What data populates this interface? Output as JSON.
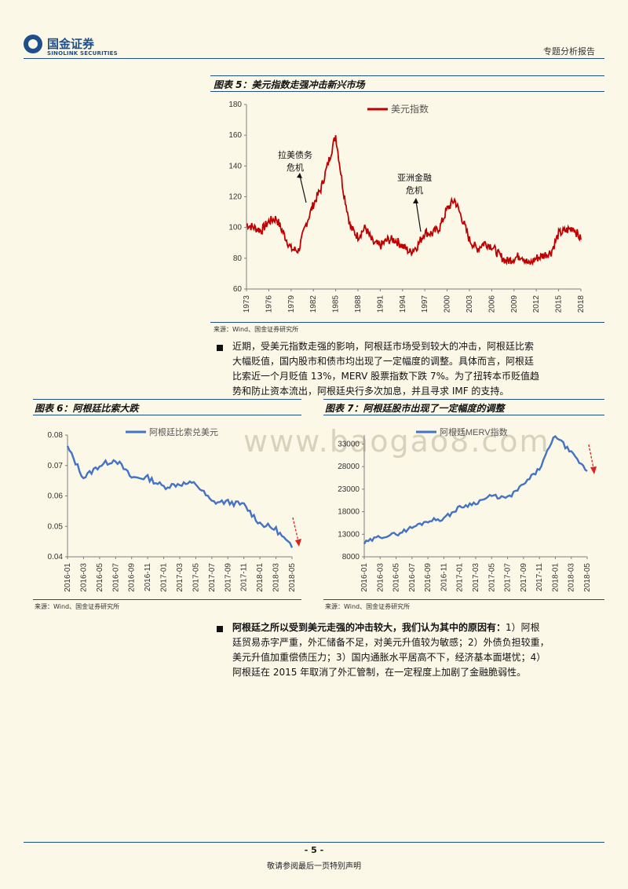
{
  "header": {
    "logo_cn": "国金证券",
    "logo_en": "SINOLINK SECURITIES",
    "right_label": "专题分析报告"
  },
  "figure5": {
    "title": "图表 5：美元指数走强冲击新兴市场",
    "source": "来源：Wind、国金证券研究所",
    "annotations": [
      "拉美债务",
      "危机",
      "亚洲金融",
      "危机"
    ]
  },
  "para1": {
    "lines": [
      "近期，受美元指数走强的影响，阿根廷市场受到较大的冲击，阿根廷比索",
      "大幅贬值，国内股市和债市均出现了一定幅度的调整。具体而言，阿根廷",
      "比索近一个月贬值 13%，MERV 股票指数下跌 7%。为了扭转本币贬值趋",
      "势和防止资本流出，阿根廷央行多次加息，并且寻求 IMF 的支持。"
    ]
  },
  "figure6": {
    "title": "图表 6：阿根廷比索大跌",
    "source": "来源：Wind、国金证券研究所"
  },
  "figure7": {
    "title": "图表 7：阿根廷股市出现了一定幅度的调整",
    "source": "来源：Wind、国金证券研究所"
  },
  "para2": {
    "lead": "阿根廷之所以受到美元走强的冲击较大，我们认为其中的原因有：",
    "lines": [
      "1）阿根",
      "廷贸易赤字严重，外汇储备不足，对美元升值较为敏感；2）外债负担较重，",
      "美元升值加重偿债压力；3）国内通胀水平居高不下，经济基本面堪忧；4）",
      "阿根廷在 2015 年取消了外汇管制，在一定程度上加剧了金融脆弱性。"
    ]
  },
  "watermark": "www.baogao8.com",
  "footer": {
    "page": "- 5 -",
    "note": "敬请参阅最后一页特别声明"
  },
  "chart_data": [
    {
      "type": "line",
      "title": "",
      "series": [
        {
          "name": "美元指数",
          "color": "#c00000"
        }
      ],
      "x": [
        1973,
        1974,
        1975,
        1976,
        1977,
        1978,
        1979,
        1980,
        1981,
        1982,
        1983,
        1984,
        1985,
        1986,
        1987,
        1988,
        1989,
        1990,
        1991,
        1992,
        1993,
        1994,
        1995,
        1996,
        1997,
        1998,
        1999,
        2000,
        2001,
        2002,
        2003,
        2004,
        2005,
        2006,
        2007,
        2008,
        2009,
        2010,
        2011,
        2012,
        2013,
        2014,
        2015,
        2016,
        2017,
        2018
      ],
      "values": [
        102,
        100,
        98,
        104,
        106,
        96,
        86,
        85,
        102,
        115,
        125,
        142,
        160,
        125,
        100,
        94,
        100,
        90,
        88,
        92,
        92,
        88,
        84,
        88,
        97,
        96,
        100,
        112,
        118,
        106,
        92,
        86,
        90,
        88,
        82,
        78,
        80,
        82,
        76,
        80,
        82,
        84,
        96,
        98,
        100,
        92
      ],
      "ylim": [
        60,
        180
      ],
      "yticks": [
        60,
        80,
        100,
        120,
        140,
        160,
        180
      ],
      "xticks": [
        "1973",
        "1976",
        "1979",
        "1982",
        "1985",
        "1988",
        "1991",
        "1994",
        "1997",
        "2000",
        "2003",
        "2006",
        "2009",
        "2012",
        "2015",
        "2018"
      ],
      "legend": "top-center",
      "grid": false
    },
    {
      "type": "line",
      "title": "",
      "series": [
        {
          "name": "阿根廷比索兑美元",
          "color": "#4472c4"
        }
      ],
      "x": [
        "2016-01",
        "2016-03",
        "2016-05",
        "2016-07",
        "2016-09",
        "2016-11",
        "2017-01",
        "2017-03",
        "2017-05",
        "2017-07",
        "2017-09",
        "2017-11",
        "2018-01",
        "2018-03",
        "2018-05"
      ],
      "values": [
        0.076,
        0.066,
        0.07,
        0.072,
        0.066,
        0.066,
        0.063,
        0.064,
        0.064,
        0.058,
        0.058,
        0.057,
        0.051,
        0.049,
        0.043
      ],
      "ylim": [
        0.04,
        0.08
      ],
      "yticks": [
        "0.04",
        "0.05",
        "0.06",
        "0.07",
        "0.08"
      ],
      "legend": "top-center",
      "grid": false
    },
    {
      "type": "line",
      "title": "",
      "series": [
        {
          "name": "阿根廷MERV指数",
          "color": "#4472c4"
        }
      ],
      "x": [
        "2016-01",
        "2016-03",
        "2016-05",
        "2016-07",
        "2016-09",
        "2016-11",
        "2017-01",
        "2017-03",
        "2017-05",
        "2017-07",
        "2017-09",
        "2017-11",
        "2018-01",
        "2018-03",
        "2018-05"
      ],
      "values": [
        11000,
        12500,
        13000,
        14500,
        16000,
        16500,
        19000,
        20000,
        21500,
        21000,
        24000,
        27500,
        35000,
        31000,
        27000
      ],
      "ylim": [
        8000,
        35000
      ],
      "yticks": [
        "8000",
        "13000",
        "18000",
        "23000",
        "28000",
        "33000"
      ],
      "legend": "top-center",
      "grid": false
    }
  ]
}
